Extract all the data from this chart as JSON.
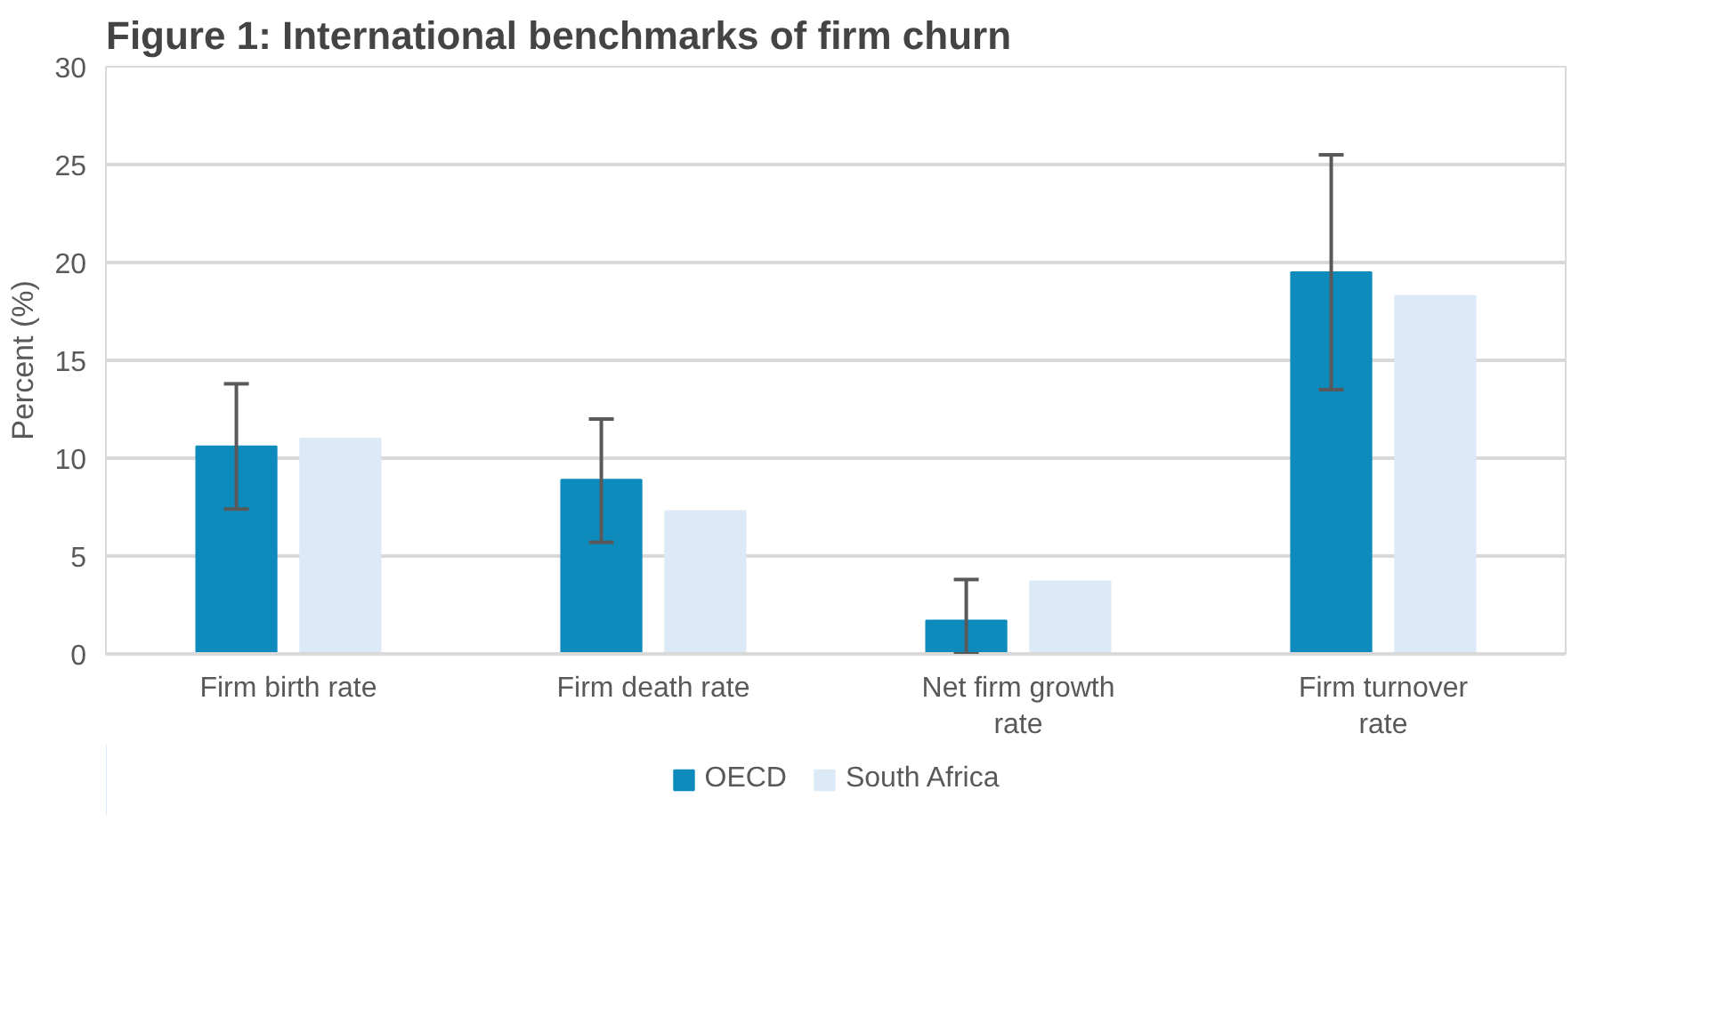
{
  "chart_data": {
    "type": "bar",
    "title": "Figure 1: International benchmarks of firm churn",
    "ylabel": "Percent (%)",
    "categories": [
      "Firm birth rate",
      "Firm death rate",
      "Net firm growth rate",
      "Firm turnover rate"
    ],
    "series": [
      {
        "name": "OECD",
        "color": "#0e8bbd",
        "values": [
          10.6,
          8.9,
          1.7,
          19.5
        ],
        "errors": [
          [
            7.4,
            13.8
          ],
          [
            5.7,
            12.0
          ],
          [
            0,
            3.8
          ],
          [
            13.5,
            25.5
          ]
        ]
      },
      {
        "name": "South Africa",
        "color": "#dce9f6",
        "values": [
          11.0,
          7.3,
          3.7,
          18.3
        ]
      }
    ],
    "ylim": [
      0,
      30
    ],
    "yticks": [
      0,
      5,
      10,
      15,
      20,
      25,
      30
    ],
    "grid": "y",
    "legend": "bottom"
  }
}
